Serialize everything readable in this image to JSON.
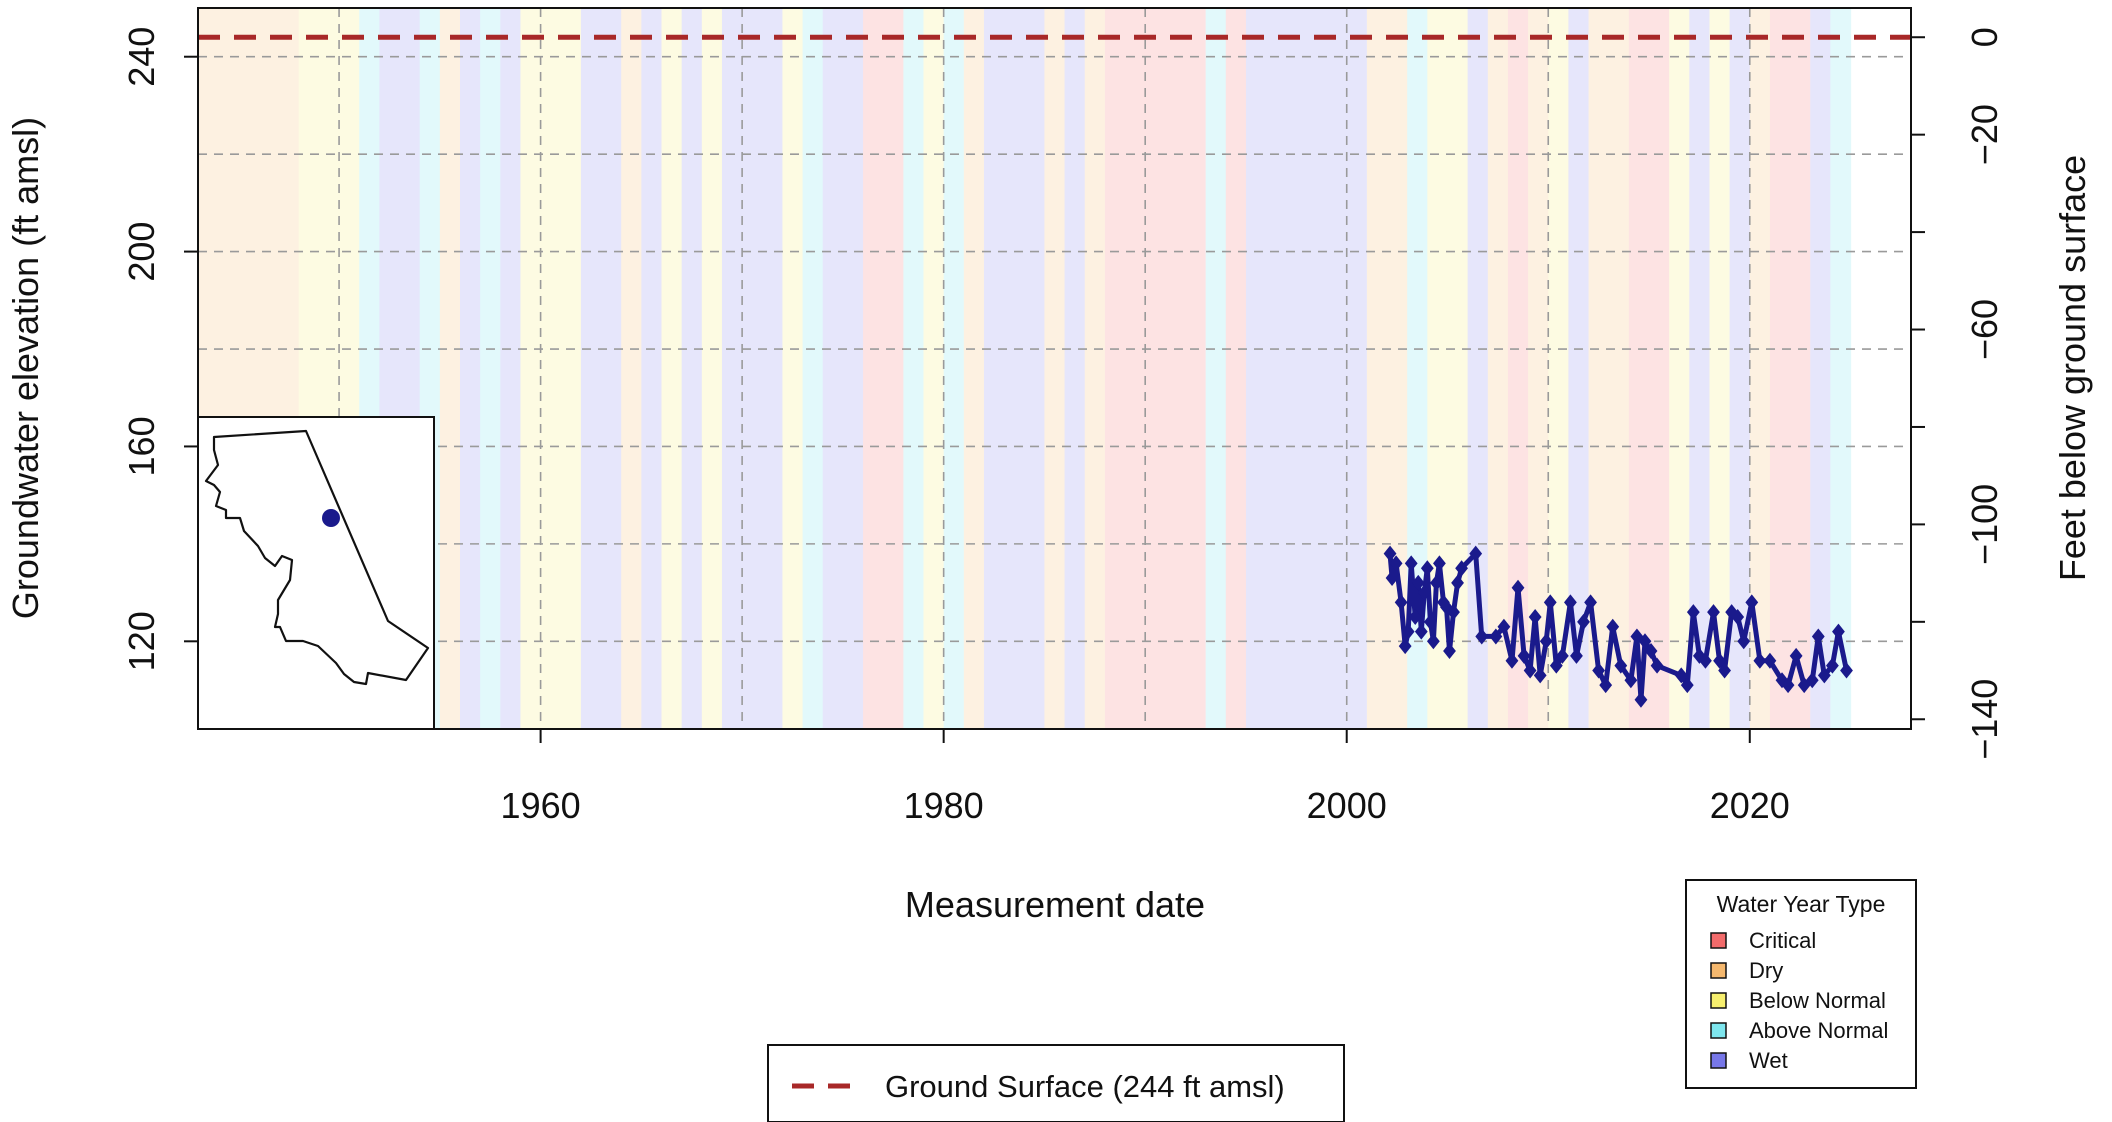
{
  "chart_data": {
    "type": "line",
    "title": "",
    "xlabel": "Measurement date",
    "ylabel": "Groundwater elevation (ft amsl)",
    "ylabel_right": "Feet below ground surface",
    "xlim": [
      1943,
      2028
    ],
    "ylim": [
      102,
      250
    ],
    "x_ticks": [
      "1960",
      "1980",
      "2000",
      "2020"
    ],
    "x_tick_values": [
      1960,
      1980,
      2000,
      2020
    ],
    "y_ticks": [
      "120",
      "160",
      "200",
      "240"
    ],
    "y_tick_values": [
      120,
      160,
      200,
      240
    ],
    "y_right_ticks": [
      "0",
      "−20",
      "−60",
      "−100",
      "−140"
    ],
    "y_right_tick_values": [
      0,
      -20,
      -60,
      -100,
      -140
    ],
    "y_right_minor_values": [
      -40,
      -80,
      -120
    ],
    "ground_surface_elevation": 244,
    "grid": true,
    "series": [
      {
        "name": "",
        "color": "#1a1a8c",
        "marker": "diamond",
        "points": [
          [
            2002.15,
            138
          ],
          [
            2002.25,
            133
          ],
          [
            2002.45,
            136
          ],
          [
            2002.7,
            128
          ],
          [
            2002.9,
            119
          ],
          [
            2003.05,
            122
          ],
          [
            2003.2,
            136
          ],
          [
            2003.4,
            125
          ],
          [
            2003.55,
            132
          ],
          [
            2003.7,
            122
          ],
          [
            2003.85,
            130
          ],
          [
            2004.0,
            135
          ],
          [
            2004.15,
            124
          ],
          [
            2004.3,
            120
          ],
          [
            2004.45,
            132
          ],
          [
            2004.6,
            136
          ],
          [
            2004.8,
            128
          ],
          [
            2004.95,
            127
          ],
          [
            2005.1,
            118
          ],
          [
            2005.3,
            126
          ],
          [
            2005.5,
            132
          ],
          [
            2005.7,
            135
          ],
          [
            2006.4,
            138
          ],
          [
            2006.7,
            121
          ],
          [
            2007.4,
            121
          ],
          [
            2007.8,
            123
          ],
          [
            2008.2,
            116
          ],
          [
            2008.5,
            131
          ],
          [
            2008.8,
            117
          ],
          [
            2009.1,
            114
          ],
          [
            2009.35,
            125
          ],
          [
            2009.6,
            113
          ],
          [
            2009.9,
            120
          ],
          [
            2010.1,
            128
          ],
          [
            2010.4,
            115
          ],
          [
            2010.7,
            117
          ],
          [
            2011.1,
            128
          ],
          [
            2011.4,
            117
          ],
          [
            2011.75,
            124
          ],
          [
            2012.1,
            128
          ],
          [
            2012.5,
            114
          ],
          [
            2012.85,
            111
          ],
          [
            2013.2,
            123
          ],
          [
            2013.6,
            115
          ],
          [
            2014.1,
            112
          ],
          [
            2014.4,
            121
          ],
          [
            2014.6,
            108
          ],
          [
            2014.8,
            120
          ],
          [
            2015.1,
            118
          ],
          [
            2015.4,
            115
          ],
          [
            2016.6,
            113
          ],
          [
            2016.9,
            111
          ],
          [
            2017.2,
            126
          ],
          [
            2017.5,
            117
          ],
          [
            2017.8,
            116
          ],
          [
            2018.2,
            126
          ],
          [
            2018.5,
            116
          ],
          [
            2018.75,
            114
          ],
          [
            2019.1,
            126
          ],
          [
            2019.4,
            125
          ],
          [
            2019.7,
            120
          ],
          [
            2020.1,
            128
          ],
          [
            2020.5,
            116
          ],
          [
            2021.0,
            116
          ],
          [
            2021.6,
            112
          ],
          [
            2021.9,
            111
          ],
          [
            2022.3,
            117
          ],
          [
            2022.7,
            111
          ],
          [
            2023.1,
            112
          ],
          [
            2023.4,
            121
          ],
          [
            2023.7,
            113
          ],
          [
            2024.1,
            115
          ],
          [
            2024.4,
            122
          ],
          [
            2024.8,
            114
          ]
        ]
      }
    ],
    "reference_line": {
      "name": "Ground Surface (244 ft amsl)",
      "value": 244,
      "color": "#a82828",
      "style": "dashed"
    },
    "legend_water_year": {
      "title": "Water Year Type",
      "placement": "bottom-right",
      "items": [
        {
          "key": "C",
          "label": "Critical",
          "color": "#f26b6b",
          "band_color": "#fde3e3"
        },
        {
          "key": "D",
          "label": "Dry",
          "color": "#f5b86e",
          "band_color": "#fdf1e1"
        },
        {
          "key": "BN",
          "label": "Below Normal",
          "color": "#f7ef6e",
          "band_color": "#fdfbe2"
        },
        {
          "key": "AN",
          "label": "Above Normal",
          "color": "#7ee6ee",
          "band_color": "#e2f9fb"
        },
        {
          "key": "W",
          "label": "Wet",
          "color": "#7777e8",
          "band_color": "#e6e6fb"
        }
      ]
    },
    "water_year_bands": [
      {
        "start": 1943,
        "end": 1948,
        "type": "D"
      },
      {
        "start": 1948,
        "end": 1951,
        "type": "BN"
      },
      {
        "start": 1951,
        "end": 1952,
        "type": "AN"
      },
      {
        "start": 1952,
        "end": 1954,
        "type": "W"
      },
      {
        "start": 1954,
        "end": 1955,
        "type": "AN"
      },
      {
        "start": 1955,
        "end": 1956,
        "type": "D"
      },
      {
        "start": 1956,
        "end": 1957,
        "type": "W"
      },
      {
        "start": 1957,
        "end": 1958,
        "type": "AN"
      },
      {
        "start": 1958,
        "end": 1959,
        "type": "W"
      },
      {
        "start": 1959,
        "end": 1962,
        "type": "BN"
      },
      {
        "start": 1962,
        "end": 1964,
        "type": "W"
      },
      {
        "start": 1964,
        "end": 1965,
        "type": "D"
      },
      {
        "start": 1965,
        "end": 1966,
        "type": "W"
      },
      {
        "start": 1966,
        "end": 1967,
        "type": "BN"
      },
      {
        "start": 1967,
        "end": 1968,
        "type": "W"
      },
      {
        "start": 1968,
        "end": 1969,
        "type": "BN"
      },
      {
        "start": 1969,
        "end": 1972,
        "type": "W"
      },
      {
        "start": 1972,
        "end": 1973,
        "type": "BN"
      },
      {
        "start": 1973,
        "end": 1974,
        "type": "AN"
      },
      {
        "start": 1974,
        "end": 1976,
        "type": "W"
      },
      {
        "start": 1976,
        "end": 1978,
        "type": "C"
      },
      {
        "start": 1978,
        "end": 1979,
        "type": "AN"
      },
      {
        "start": 1979,
        "end": 1980,
        "type": "BN"
      },
      {
        "start": 1980,
        "end": 1981,
        "type": "AN"
      },
      {
        "start": 1981,
        "end": 1982,
        "type": "D"
      },
      {
        "start": 1982,
        "end": 1985,
        "type": "W"
      },
      {
        "start": 1985,
        "end": 1986,
        "type": "D"
      },
      {
        "start": 1986,
        "end": 1987,
        "type": "W"
      },
      {
        "start": 1987,
        "end": 1988,
        "type": "D"
      },
      {
        "start": 1988,
        "end": 1993,
        "type": "C"
      },
      {
        "start": 1993,
        "end": 1994,
        "type": "AN"
      },
      {
        "start": 1994,
        "end": 1995,
        "type": "C"
      },
      {
        "start": 1995,
        "end": 2001,
        "type": "W"
      },
      {
        "start": 2001,
        "end": 2002,
        "type": "D"
      },
      {
        "start": 2002,
        "end": 2003,
        "type": "D"
      },
      {
        "start": 2003,
        "end": 2004,
        "type": "AN"
      },
      {
        "start": 2004,
        "end": 2005,
        "type": "BN"
      },
      {
        "start": 2005,
        "end": 2006,
        "type": "BN"
      },
      {
        "start": 2006,
        "end": 2007,
        "type": "W"
      },
      {
        "start": 2007,
        "end": 2008,
        "type": "D"
      },
      {
        "start": 2008,
        "end": 2009,
        "type": "C"
      },
      {
        "start": 2009,
        "end": 2010,
        "type": "D"
      },
      {
        "start": 2010,
        "end": 2011,
        "type": "BN"
      },
      {
        "start": 2011,
        "end": 2012,
        "type": "W"
      },
      {
        "start": 2012,
        "end": 2013,
        "type": "D"
      },
      {
        "start": 2013,
        "end": 2014,
        "type": "D"
      },
      {
        "start": 2014,
        "end": 2016,
        "type": "C"
      },
      {
        "start": 2016,
        "end": 2017,
        "type": "BN"
      },
      {
        "start": 2017,
        "end": 2018,
        "type": "W"
      },
      {
        "start": 2018,
        "end": 2019,
        "type": "BN"
      },
      {
        "start": 2019,
        "end": 2020,
        "type": "W"
      },
      {
        "start": 2020,
        "end": 2021,
        "type": "D"
      },
      {
        "start": 2021,
        "end": 2023,
        "type": "C"
      },
      {
        "start": 2023,
        "end": 2024,
        "type": "W"
      },
      {
        "start": 2024,
        "end": 2025,
        "type": "AN"
      }
    ],
    "inset_map": {
      "placement": "bottom-left",
      "marker_color": "#1a1a8c"
    }
  }
}
